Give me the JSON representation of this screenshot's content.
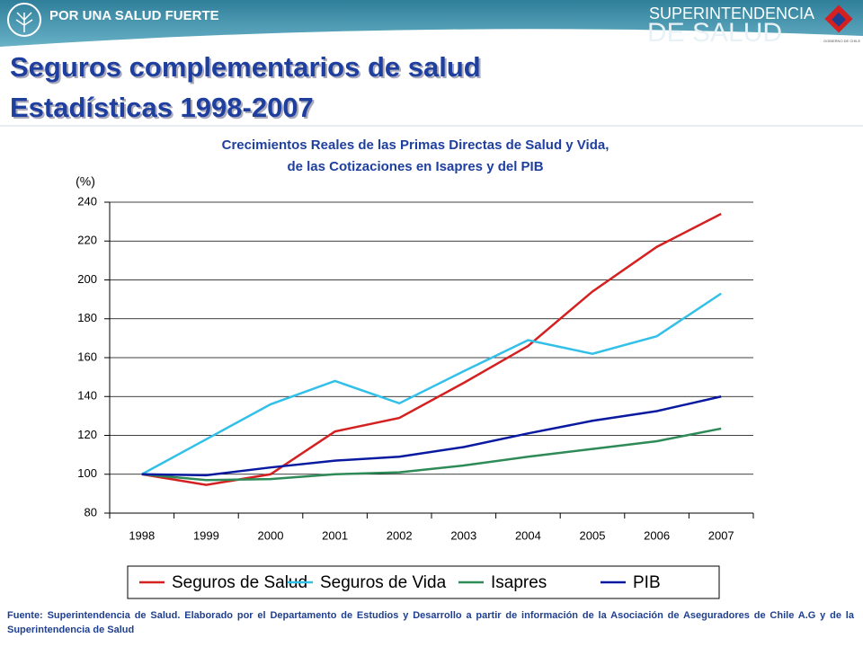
{
  "header": {
    "slogan": "POR UNA SALUD FUERTE",
    "brand_line1": "SUPERINTENDENCIA",
    "brand_line2": "DE SALUD",
    "brand_small": "GOBIERNO DE CHILE",
    "title_line1": "Seguros complementarios de salud",
    "title_line2": "Estadísticas 1998-2007"
  },
  "chart_data": {
    "type": "line",
    "title_line1": "Crecimientos Reales  de las Primas Directas de Salud y Vida,",
    "title_line2": "de las Cotizaciones en Isapres y del PIB",
    "ylabel": "(%)",
    "categories": [
      "1998",
      "1999",
      "2000",
      "2001",
      "2002",
      "2003",
      "2004",
      "2005",
      "2006",
      "2007"
    ],
    "series": [
      {
        "name": "Seguros de Salud",
        "color": "#d42020",
        "values": [
          100,
          94.5,
          100,
          122,
          129,
          147,
          166,
          194,
          217,
          234
        ]
      },
      {
        "name": "Seguros de Vida",
        "color": "#33c0e8",
        "values": [
          100,
          118,
          136,
          148,
          136.5,
          153,
          169,
          162,
          171,
          193
        ]
      },
      {
        "name": "Isapres",
        "color": "#2e8b57",
        "values": [
          100,
          97,
          97.5,
          100,
          101,
          104.5,
          109,
          113,
          117,
          123.5
        ]
      },
      {
        "name": "PIB",
        "color": "#0a1aa0",
        "values": [
          100,
          99.5,
          103.5,
          107,
          109,
          114,
          121,
          127.5,
          132.5,
          140
        ]
      }
    ],
    "ylim": [
      80,
      240
    ],
    "yticks": [
      80,
      100,
      120,
      140,
      160,
      180,
      200,
      220,
      240
    ],
    "grid": true,
    "legend": "bottom"
  },
  "footnote": "Fuente:   Superintendencia de Salud.  Elaborado por el Departamento de Estudios y Desarrollo a partir de información de la Asociación de Aseguradores de Chile A.G y de la Superintendencia de Salud"
}
